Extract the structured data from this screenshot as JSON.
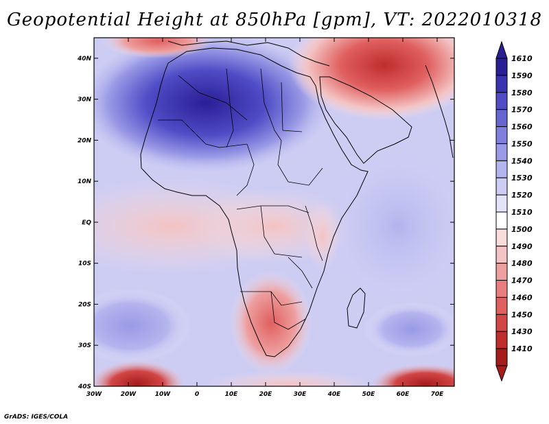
{
  "title": "Geopotential Height at 850hPa [gpm], VT: 2022010318",
  "credit": "GrADS: IGES/COLA",
  "map": {
    "lon_labels": [
      "30W",
      "20W",
      "10W",
      "0",
      "10E",
      "20E",
      "30E",
      "40E",
      "50E",
      "60E",
      "70E"
    ],
    "lat_labels": [
      "40N",
      "30N",
      "20N",
      "10N",
      "EQ",
      "10S",
      "20S",
      "30S",
      "40S"
    ]
  },
  "colorbar": {
    "labels": [
      "1610",
      "1590",
      "1580",
      "1570",
      "1560",
      "1550",
      "1540",
      "1530",
      "1520",
      "1510",
      "1500",
      "1490",
      "1480",
      "1470",
      "1460",
      "1450",
      "1430",
      "1410"
    ],
    "colors": [
      "#2a1e94",
      "#3a33b0",
      "#4f4cc6",
      "#6666d2",
      "#7f7fdd",
      "#9a9ae6",
      "#b4b4ee",
      "#cdcdf4",
      "#e4e4f9",
      "#ffffff",
      "#f9dcdc",
      "#f4c3c3",
      "#ee9f9f",
      "#e77f7f",
      "#e05f5f",
      "#d34646",
      "#bf2d2d",
      "#a41c1c"
    ]
  },
  "colors": {
    "frame": "#000000",
    "land_lines": "#000000"
  }
}
